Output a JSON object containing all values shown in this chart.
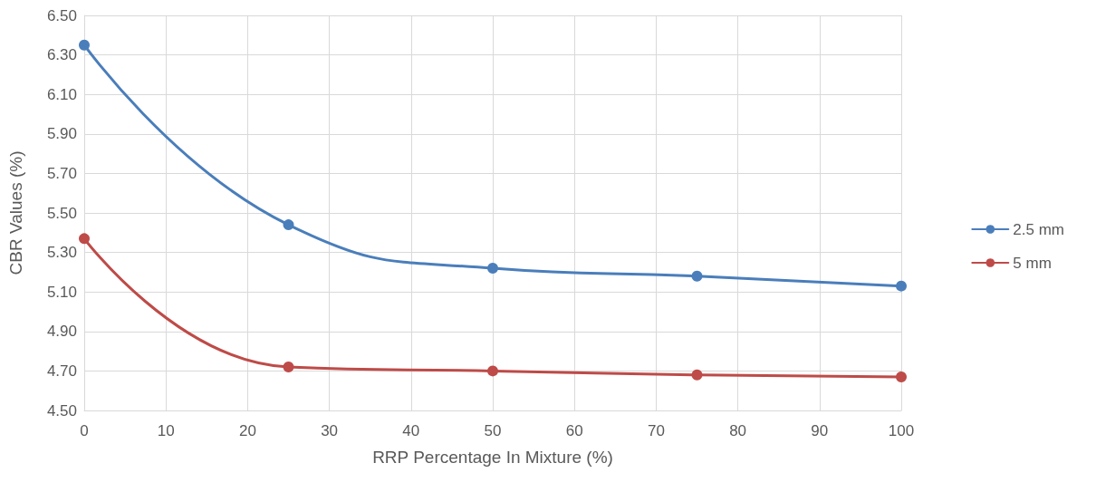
{
  "chart_data": {
    "type": "line",
    "xlabel": "RRP Percentage In Mixture (%)",
    "ylabel": "CBR Values (%)",
    "x": [
      0,
      25,
      50,
      75,
      100
    ],
    "series": [
      {
        "name": "2.5 mm",
        "color": "#4a7ebb",
        "values": [
          6.35,
          5.44,
          5.22,
          5.18,
          5.13
        ]
      },
      {
        "name": "5 mm",
        "color": "#be4b48",
        "values": [
          5.37,
          4.72,
          4.7,
          4.68,
          4.67
        ]
      }
    ],
    "xlim": [
      0,
      100
    ],
    "xticks": [
      0,
      10,
      20,
      30,
      40,
      50,
      60,
      70,
      80,
      90,
      100
    ],
    "ylim": [
      4.5,
      6.5
    ],
    "yticks": [
      {
        "value": 4.5,
        "label": "4.50"
      },
      {
        "value": 4.7,
        "label": "4.70"
      },
      {
        "value": 4.9,
        "label": "4.90"
      },
      {
        "value": 5.1,
        "label": "5.10"
      },
      {
        "value": 5.3,
        "label": "5.30"
      },
      {
        "value": 5.5,
        "label": "5.50"
      },
      {
        "value": 5.7,
        "label": "5.70"
      },
      {
        "value": 5.9,
        "label": "5.90"
      },
      {
        "value": 6.1,
        "label": "6.10"
      },
      {
        "value": 6.3,
        "label": "6.30"
      },
      {
        "value": 6.5,
        "label": "6.50"
      }
    ],
    "grid": true,
    "legend": "right",
    "marker": "circle",
    "line_style": "solid"
  }
}
